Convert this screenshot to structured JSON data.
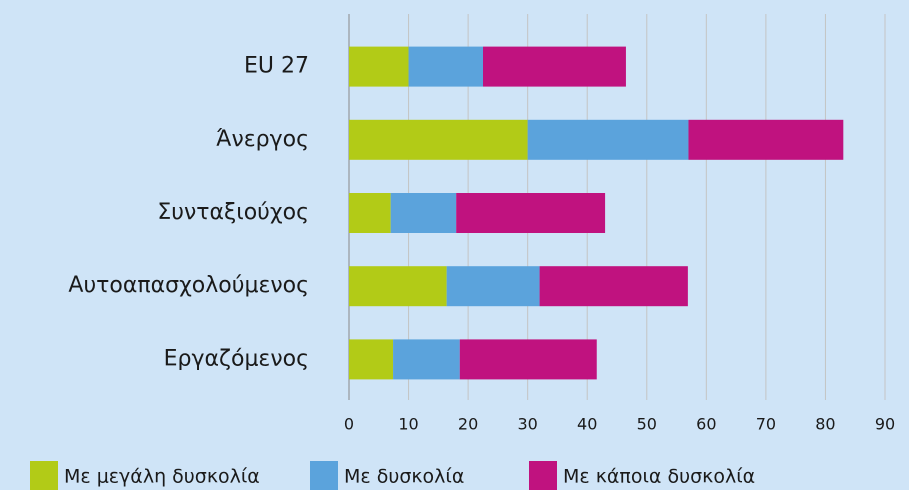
{
  "chart_data": {
    "type": "stacked-barh",
    "categories": [
      "EU 27",
      "Άνεργος",
      "Συνταξιούχος",
      "Αυτοαπασχολούμενος",
      "Εργαζόμενος"
    ],
    "series": [
      {
        "name": "Με μεγάλη δυσκολία",
        "color": "#b2cb17",
        "values": [
          10,
          30,
          7,
          16.4,
          7.4
        ]
      },
      {
        "name": "Με δυσκολία",
        "color": "#5ba3dc",
        "values": [
          12.5,
          27,
          11,
          15.6,
          11.2
        ]
      },
      {
        "name": "Με κάποια δυσκολία",
        "color": "#c0127f",
        "values": [
          24,
          26,
          25,
          24.9,
          23
        ]
      }
    ],
    "xlim": [
      0,
      90
    ],
    "xticks": [
      0,
      10,
      20,
      30,
      40,
      50,
      60,
      70,
      80,
      90
    ],
    "grid": true
  }
}
